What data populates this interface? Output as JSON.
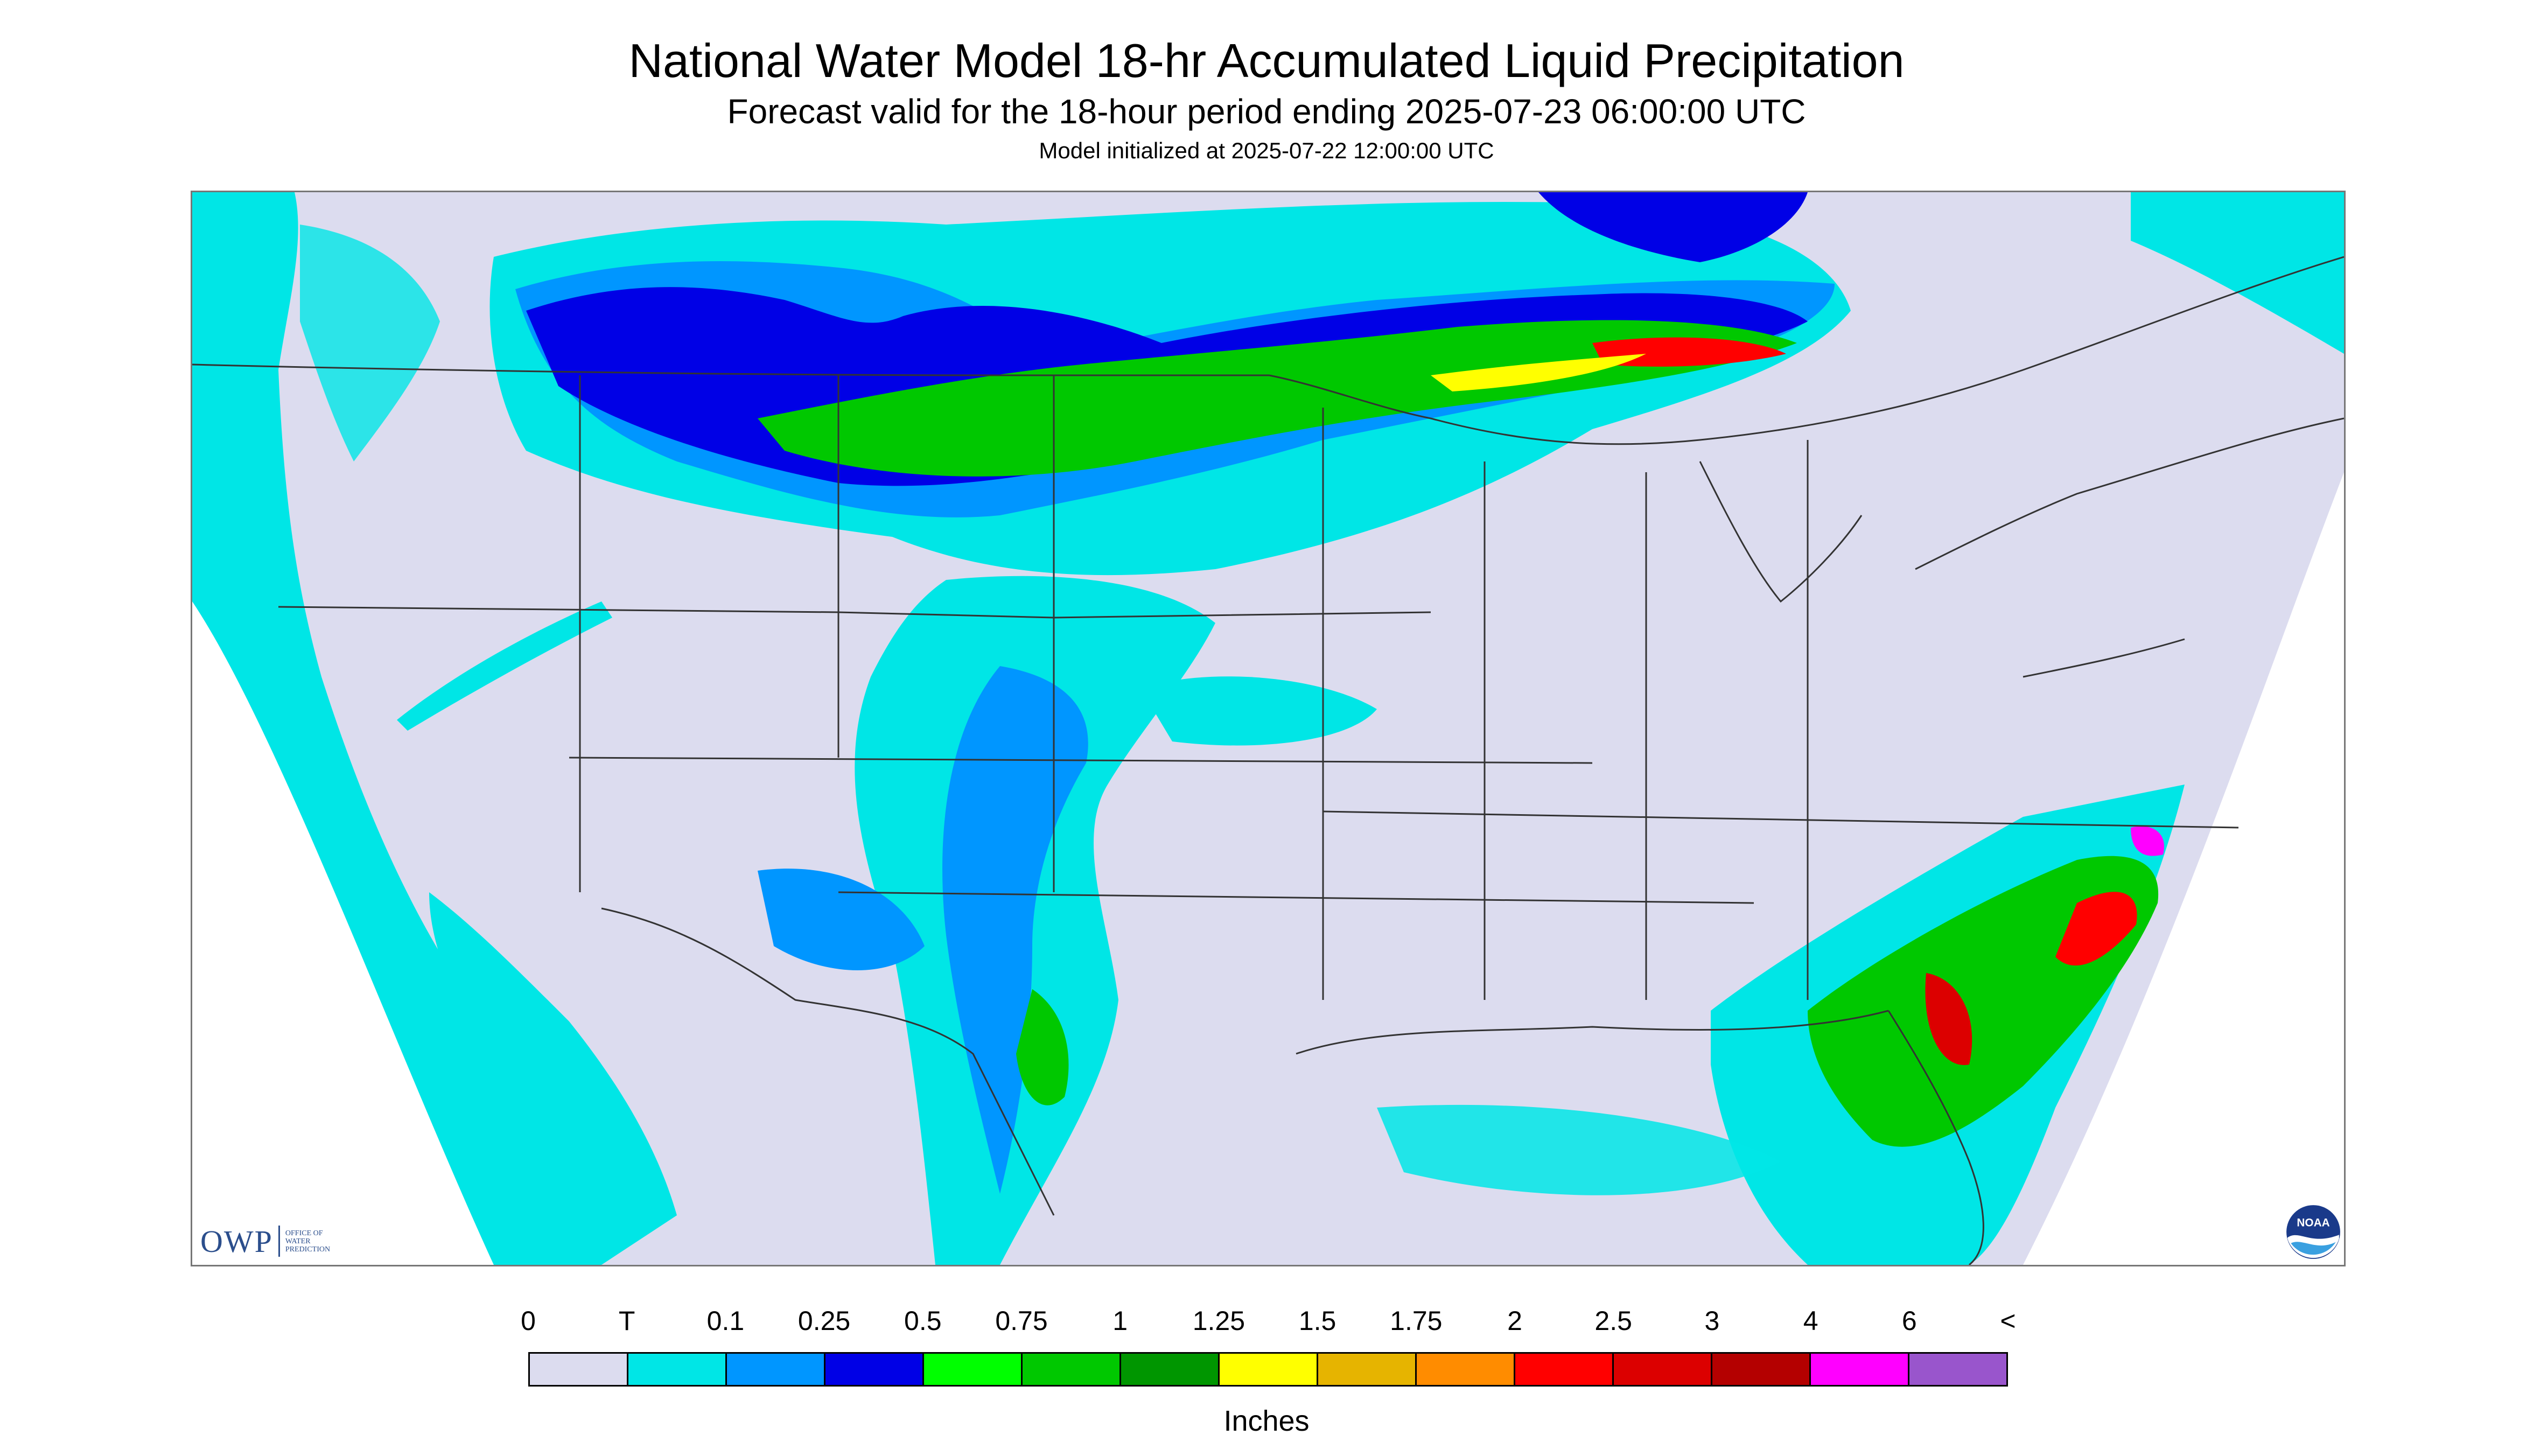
{
  "title": "National Water Model 18-hr Accumulated Liquid Precipitation",
  "subtitle": "Forecast valid for the 18-hour period ending 2025-07-23 06:00:00 UTC",
  "init_line": "Model initialized at 2025-07-22 12:00:00 UTC",
  "owp_logo": {
    "text": "OWP",
    "small_lines": [
      "OFFICE OF",
      "WATER",
      "PREDICTION"
    ]
  },
  "noaa_logo": {
    "text": "NOAA",
    "icon": "noaa-logo-icon"
  },
  "legend": {
    "labels": [
      "0",
      "T",
      "0.1",
      "0.25",
      "0.5",
      "0.75",
      "1",
      "1.25",
      "1.5",
      "1.75",
      "2",
      "2.5",
      "3",
      "4",
      "6",
      "<"
    ],
    "colors": [
      "#dcdcef",
      "#00e6e6",
      "#0096ff",
      "#0000e6",
      "#00ff00",
      "#00c800",
      "#009600",
      "#ffff00",
      "#e6b400",
      "#ff8c00",
      "#ff0000",
      "#dc0000",
      "#b40000",
      "#ff00ff",
      "#9955cc"
    ],
    "units": "Inches"
  },
  "map": {
    "land_color": "#dcdcef",
    "outside_color": "#ffffff",
    "border_color": "#333333"
  }
}
